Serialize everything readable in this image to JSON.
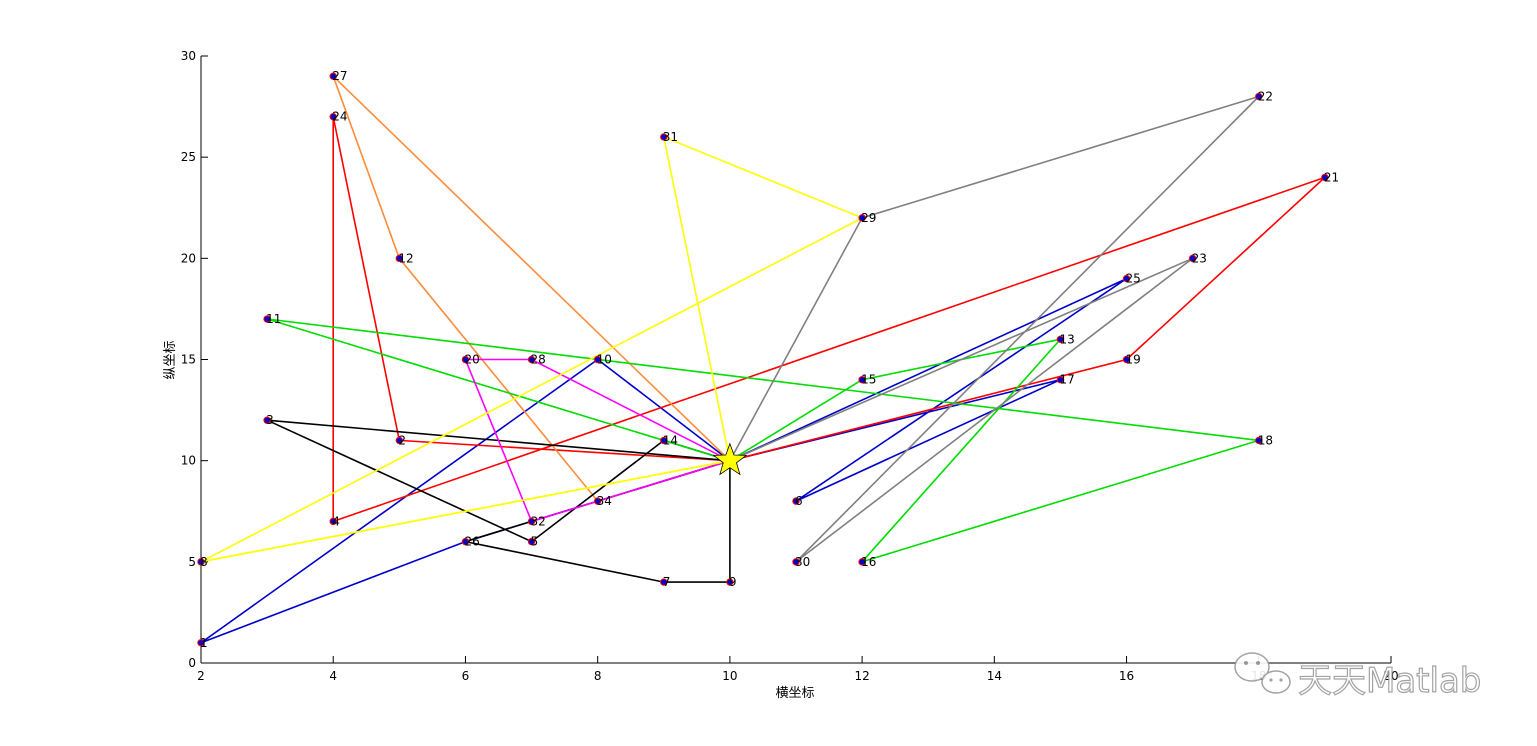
{
  "chart_data": {
    "type": "line",
    "title": "",
    "xlabel": "横坐标",
    "ylabel": "纵坐标",
    "xlim": [
      2,
      20
    ],
    "ylim": [
      0,
      30
    ],
    "xticks": [
      "2",
      "4",
      "6",
      "8",
      "10",
      "12",
      "14",
      "16",
      "18",
      "20"
    ],
    "yticks": [
      "0",
      "5",
      "10",
      "15",
      "20",
      "25",
      "30"
    ],
    "grid": false,
    "depot": {
      "x": 10,
      "y": 10,
      "marker": "star",
      "color": "#ffff00"
    },
    "nodes": [
      {
        "label": "1",
        "x": 2,
        "y": 1
      },
      {
        "label": "2",
        "x": 5,
        "y": 11
      },
      {
        "label": "3",
        "x": 3,
        "y": 12
      },
      {
        "label": "4",
        "x": 4,
        "y": 7
      },
      {
        "label": "5",
        "x": 7,
        "y": 6
      },
      {
        "label": "6",
        "x": 11,
        "y": 8
      },
      {
        "label": "7",
        "x": 9,
        "y": 4
      },
      {
        "label": "8",
        "x": 2,
        "y": 5
      },
      {
        "label": "9",
        "x": 10,
        "y": 4
      },
      {
        "label": "10",
        "x": 8,
        "y": 15
      },
      {
        "label": "11",
        "x": 3,
        "y": 17
      },
      {
        "label": "12",
        "x": 5,
        "y": 20
      },
      {
        "label": "13",
        "x": 15,
        "y": 16
      },
      {
        "label": "14",
        "x": 9,
        "y": 11
      },
      {
        "label": "15",
        "x": 12,
        "y": 14
      },
      {
        "label": "16",
        "x": 12,
        "y": 5
      },
      {
        "label": "17",
        "x": 15,
        "y": 14
      },
      {
        "label": "18",
        "x": 18,
        "y": 11
      },
      {
        "label": "19",
        "x": 16,
        "y": 15
      },
      {
        "label": "20",
        "x": 6,
        "y": 15
      },
      {
        "label": "21",
        "x": 19,
        "y": 24
      },
      {
        "label": "22",
        "x": 18,
        "y": 28
      },
      {
        "label": "23",
        "x": 17,
        "y": 20
      },
      {
        "label": "24",
        "x": 4,
        "y": 27
      },
      {
        "label": "25",
        "x": 16,
        "y": 19
      },
      {
        "label": "26",
        "x": 6,
        "y": 6
      },
      {
        "label": "27",
        "x": 4,
        "y": 29
      },
      {
        "label": "28",
        "x": 7,
        "y": 15
      },
      {
        "label": "29",
        "x": 12,
        "y": 22
      },
      {
        "label": "30",
        "x": 11,
        "y": 5
      },
      {
        "label": "31",
        "x": 9,
        "y": 26
      },
      {
        "label": "32",
        "x": 7,
        "y": 7
      },
      {
        "label": "34",
        "x": 8,
        "y": 8
      }
    ],
    "series": [
      {
        "color": "#0000cc",
        "route": [
          "D",
          "26",
          "1",
          "10",
          "D"
        ]
      },
      {
        "color": "#0000cc",
        "route": [
          "D",
          "25",
          "6",
          "17",
          "D"
        ]
      },
      {
        "color": "#ff0000",
        "route": [
          "D",
          "2",
          "24",
          "4",
          "21",
          "19",
          "D"
        ]
      },
      {
        "color": "#ff8c3a",
        "route": [
          "D",
          "27",
          "12",
          "34",
          "D"
        ]
      },
      {
        "color": "#000000",
        "route": [
          "D",
          "3",
          "5",
          "14",
          "D"
        ]
      },
      {
        "color": "#000000",
        "route": [
          "D",
          "26",
          "7",
          "9",
          "D"
        ]
      },
      {
        "color": "#00dd00",
        "route": [
          "D",
          "11",
          "18",
          "16",
          "13",
          "15",
          "D"
        ]
      },
      {
        "color": "#ff00ff",
        "route": [
          "D",
          "28",
          "20",
          "32",
          "D"
        ]
      },
      {
        "color": "#ffff00",
        "route": [
          "D",
          "8",
          "29",
          "31",
          "D"
        ]
      },
      {
        "color": "#ffff00",
        "route": [
          "D",
          "8",
          "D"
        ]
      },
      {
        "color": "#808080",
        "route": [
          "D",
          "23",
          "30",
          "22",
          "29",
          "D"
        ]
      }
    ]
  },
  "watermark": {
    "text": "天天Matlab",
    "icon": "wechat-icon"
  }
}
